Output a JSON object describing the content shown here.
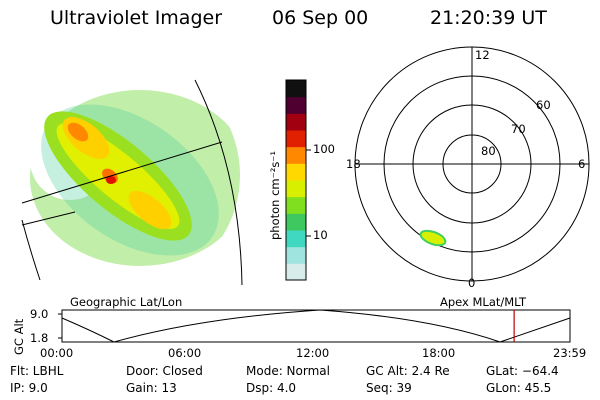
{
  "header": {
    "instrument": "Ultraviolet Imager",
    "date": "06 Sep 00",
    "time": "21:20:39 UT"
  },
  "colorbar": {
    "unit_label": "photon cm⁻²s⁻¹",
    "ticks": [
      "100",
      "10"
    ],
    "scale": "log",
    "colors": [
      "#d8ecec",
      "#a0e4e0",
      "#40d8c0",
      "#40c860",
      "#80e020",
      "#d8f000",
      "#ffd800",
      "#ff8800",
      "#e02000",
      "#a00010",
      "#500030",
      "#101010"
    ]
  },
  "polar_plot": {
    "mlt_labels": {
      "top": "12",
      "left": "18",
      "right": "6",
      "bottom": "0"
    },
    "lat_labels": [
      "60",
      "70",
      "80"
    ]
  },
  "timeline": {
    "left_title": "Geographic Lat/Lon",
    "right_title": "Apex MLat/MLT",
    "y_axis_label": "GC Alt",
    "y_ticks": [
      "9.0",
      "1.8"
    ],
    "x_ticks": [
      "00:00",
      "06:00",
      "12:00",
      "18:00",
      "23:59"
    ],
    "current_time_fraction": 0.89,
    "marker_color": "#c00000"
  },
  "info": {
    "flt": "Flt: LBHL",
    "ip": "IP:  9.0",
    "door": "Door: Closed",
    "gain": "Gain: 13",
    "mode": "Mode: Normal",
    "dsp": "Dsp:    4.0",
    "gcalt": "GC Alt: 2.4 Re",
    "seq": "Seq: 39",
    "glat": "GLat: −64.4",
    "glon": "GLon:  45.5"
  }
}
